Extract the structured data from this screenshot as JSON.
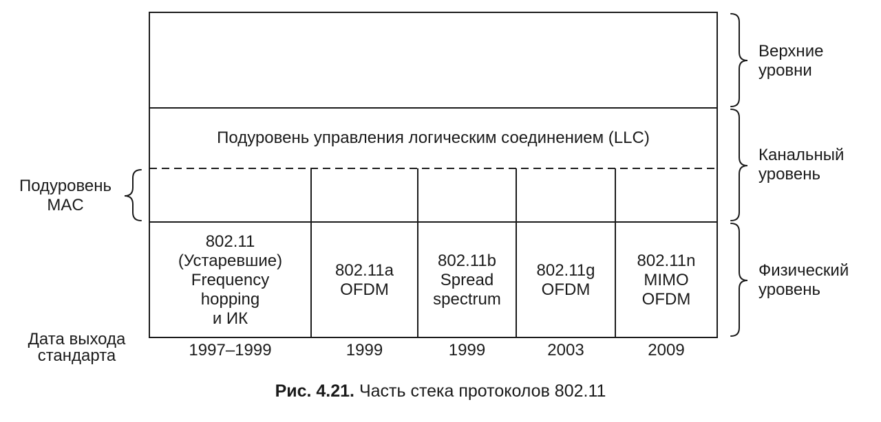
{
  "layers": {
    "upper": {
      "line1": "Верхние",
      "line2": "уровни"
    },
    "data_link": {
      "line1": "Канальный",
      "line2": "уровень"
    },
    "physical": {
      "line1": "Физический",
      "line2": "уровень"
    }
  },
  "llc_label": "Подуровень управления логическим соединением (LLC)",
  "mac_label": {
    "line1": "Подуровень",
    "line2": "MAC"
  },
  "date_label": {
    "line1": "Дата выхода",
    "line2": "стандарта"
  },
  "standards": [
    {
      "lines": [
        "802.11",
        "(Устаревшие)",
        "Frequency",
        "hopping",
        "и ИК"
      ],
      "year": "1997–1999"
    },
    {
      "lines": [
        "802.11a",
        "OFDM"
      ],
      "year": "1999"
    },
    {
      "lines": [
        "802.11b",
        "Spread",
        "spectrum"
      ],
      "year": "1999"
    },
    {
      "lines": [
        "802.11g",
        "OFDM"
      ],
      "year": "2003"
    },
    {
      "lines": [
        "802.11n",
        "MIMO",
        "OFDM"
      ],
      "year": "2009"
    }
  ],
  "caption": {
    "prefix": "Рис. 4.21.",
    "text": " Часть стека протоколов 802.11"
  }
}
